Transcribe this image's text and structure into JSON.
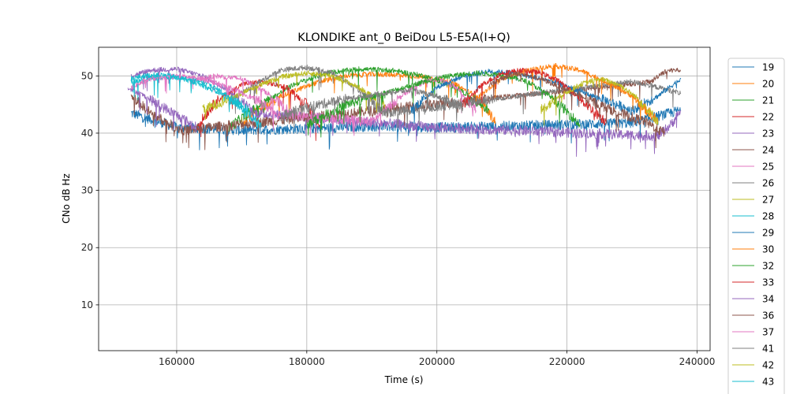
{
  "chart_data": {
    "type": "line",
    "title": "KLONDIKE ant_0 BeiDou L5-E5A(I+Q)",
    "xlabel": "Time (s)",
    "ylabel": "CNo dB Hz",
    "xlim": [
      148000,
      242000
    ],
    "ylim": [
      2,
      55
    ],
    "xticks": [
      160000,
      180000,
      200000,
      220000,
      240000
    ],
    "yticks": [
      10,
      20,
      30,
      40,
      50
    ],
    "grid": true,
    "legend_position": "right-outside",
    "series": [
      {
        "name": "19",
        "color": "#1f77b4",
        "x": [
          153000,
          160000,
          170000,
          180000,
          190000,
          200000,
          210000,
          220000,
          230000,
          237500
        ],
        "y": [
          43.5,
          41.0,
          40.5,
          40.8,
          41.2,
          41.0,
          41.2,
          41.5,
          41.8,
          44.0
        ]
      },
      {
        "name": "20",
        "color": "#ff7f0e",
        "x": [
          170000,
          176000,
          182000,
          186000,
          190000,
          194000,
          198000,
          202000,
          206000,
          209000
        ],
        "y": [
          42.0,
          46.5,
          49.0,
          50.0,
          50.3,
          50.2,
          49.8,
          49.0,
          46.5,
          42.0
        ]
      },
      {
        "name": "21",
        "color": "#2ca02c",
        "x": [
          168000,
          173000,
          178000,
          183000,
          188000,
          193000,
          198000,
          203000,
          208000
        ],
        "y": [
          41.0,
          45.0,
          48.5,
          50.5,
          51.2,
          51.0,
          50.0,
          48.0,
          44.0
        ]
      },
      {
        "name": "22",
        "color": "#d62728",
        "x": [
          163000,
          166000,
          170000,
          173000,
          177000,
          180000,
          182000
        ],
        "y": [
          41.0,
          45.5,
          48.5,
          49.0,
          48.0,
          45.0,
          41.0
        ]
      },
      {
        "name": "23",
        "color": "#9467bd",
        "x": [
          153000,
          156000,
          160000,
          164000,
          168000,
          172000,
          200000,
          234000,
          236000,
          237500
        ],
        "y": [
          50.0,
          51.0,
          51.2,
          50.0,
          47.5,
          43.5,
          41.0,
          39.5,
          41.5,
          44.0
        ]
      },
      {
        "name": "24",
        "color": "#8c564b",
        "x": [
          153000,
          154500,
          156000,
          157500,
          159000,
          161000,
          233000,
          234500,
          236000,
          237500
        ],
        "y": [
          46.5,
          45.0,
          43.5,
          42.5,
          41.5,
          40.5,
          49.0,
          50.5,
          51.0,
          51.0
        ]
      },
      {
        "name": "25",
        "color": "#e377c2",
        "x": [
          162000,
          166000,
          170000,
          174000,
          178000,
          190000,
          194000,
          197000,
          200000,
          203000,
          206000
        ],
        "y": [
          49.0,
          50.0,
          49.5,
          47.0,
          43.0,
          42.0,
          46.0,
          48.5,
          49.5,
          48.0,
          44.0
        ]
      },
      {
        "name": "26",
        "color": "#7f7f7f",
        "x": [
          168000,
          172000,
          176000,
          180000,
          184000,
          188000,
          192000,
          226000,
          230000,
          234000,
          237500
        ],
        "y": [
          45.5,
          48.5,
          51.0,
          51.5,
          50.5,
          47.5,
          43.5,
          48.5,
          49.0,
          48.0,
          47.0
        ]
      },
      {
        "name": "27",
        "color": "#bcbd22",
        "x": [
          164000,
          168000,
          172000,
          176000,
          180000,
          184000,
          188000,
          192000
        ],
        "y": [
          44.0,
          46.0,
          48.0,
          49.8,
          50.5,
          50.0,
          48.0,
          45.0
        ]
      },
      {
        "name": "28",
        "color": "#17becf",
        "x": [
          153000,
          156000,
          159000,
          162000,
          165000,
          168000,
          171000,
          173000
        ],
        "y": [
          49.0,
          49.5,
          49.8,
          49.5,
          48.5,
          46.5,
          43.5,
          41.0
        ]
      },
      {
        "name": "29",
        "color": "#1f77b4",
        "x": [
          196000,
          200000,
          204000,
          208000,
          212000,
          218000,
          224000,
          230000,
          234000,
          237500
        ],
        "y": [
          44.0,
          48.0,
          50.0,
          50.8,
          50.5,
          49.0,
          46.5,
          44.0,
          46.5,
          49.5
        ]
      },
      {
        "name": "30",
        "color": "#ff7f0e",
        "x": [
          206000,
          210000,
          214000,
          218000,
          222000,
          226000,
          230000,
          234000
        ],
        "y": [
          46.0,
          49.5,
          51.0,
          51.8,
          51.0,
          49.0,
          46.5,
          42.0
        ]
      },
      {
        "name": "32",
        "color": "#2ca02c",
        "x": [
          180000,
          186000,
          192000,
          198000,
          202000,
          206000,
          210000,
          214000,
          218000,
          222000
        ],
        "y": [
          41.5,
          45.0,
          47.0,
          49.0,
          50.0,
          50.5,
          50.2,
          49.0,
          46.0,
          41.5
        ]
      },
      {
        "name": "33",
        "color": "#d62728",
        "x": [
          204000,
          207000,
          210000,
          213000,
          216000,
          219000,
          222000,
          226000
        ],
        "y": [
          45.0,
          48.5,
          50.5,
          51.0,
          50.5,
          49.0,
          46.0,
          42.0
        ]
      },
      {
        "name": "34",
        "color": "#9467bd",
        "x": [
          152500,
          155000,
          158000,
          161000,
          163000
        ],
        "y": [
          48.0,
          46.5,
          44.5,
          42.5,
          41.0
        ]
      },
      {
        "name": "36",
        "color": "#8c564b",
        "x": [
          208000,
          212000,
          216000,
          220000,
          224000,
          228000,
          232000,
          235000
        ],
        "y": [
          48.5,
          50.5,
          49.5,
          47.5,
          45.5,
          43.5,
          42.0,
          40.0
        ]
      },
      {
        "name": "37",
        "color": "#e377c2",
        "x": [
          153000,
          156000,
          160000,
          164000,
          168000,
          172000,
          176000
        ],
        "y": [
          48.0,
          49.5,
          50.0,
          49.5,
          48.0,
          46.0,
          43.0
        ]
      },
      {
        "name": "41",
        "color": "#7f7f7f",
        "x": [
          176000,
          180000,
          186000,
          192000,
          196000,
          200000,
          204000
        ],
        "y": [
          43.0,
          44.5,
          46.0,
          47.0,
          47.5,
          46.5,
          44.5
        ]
      },
      {
        "name": "42",
        "color": "#bcbd22",
        "x": [
          216000,
          219000,
          222000,
          225000,
          228000,
          231000,
          234000
        ],
        "y": [
          44.0,
          46.5,
          48.5,
          49.5,
          48.5,
          46.0,
          42.0
        ]
      },
      {
        "name": "43",
        "color": "#17becf",
        "x": [
          153000,
          155000,
          157000,
          159000,
          161000,
          163000,
          165000,
          167000,
          169000,
          171000
        ],
        "y": [
          49.5,
          50.0,
          50.2,
          50.0,
          49.5,
          48.8,
          47.8,
          46.8,
          45.5,
          44.0
        ]
      }
    ]
  }
}
